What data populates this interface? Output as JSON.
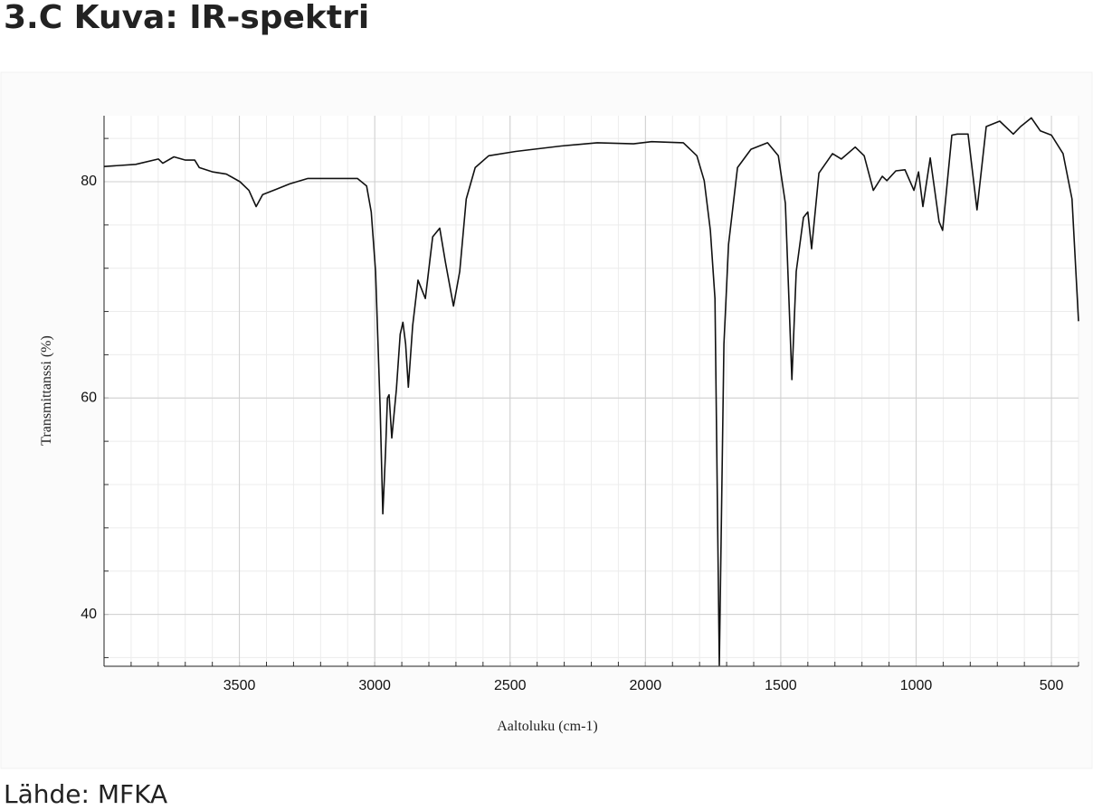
{
  "heading": "3.C Kuva: IR-spektri",
  "source": "Lähde: MFKA",
  "chart_data": {
    "type": "line",
    "xlabel": "Aaltoluku (cm-1)",
    "ylabel": "Transmittanssi (%)",
    "xlim": [
      4000,
      400
    ],
    "ylim": [
      35.2,
      86.1
    ],
    "xticks": [
      3500,
      3000,
      2500,
      2000,
      1500,
      1000,
      500
    ],
    "yticks": [
      40,
      60,
      80
    ],
    "grid": true,
    "minor_grid": true,
    "color": "#111111",
    "x": [
      4000,
      3883,
      3799,
      3783,
      3742,
      3699,
      3665,
      3648,
      3598,
      3548,
      3498,
      3465,
      3438,
      3414,
      3364,
      3314,
      3247,
      3180,
      3114,
      3064,
      3030,
      3013,
      2997,
      2980,
      2970,
      2960,
      2953,
      2947,
      2937,
      2920,
      2906,
      2896,
      2886,
      2876,
      2860,
      2840,
      2813,
      2786,
      2760,
      2739,
      2709,
      2686,
      2662,
      2629,
      2579,
      2479,
      2311,
      2178,
      2044,
      1977,
      1860,
      1810,
      1783,
      1760,
      1743,
      1727,
      1710,
      1693,
      1660,
      1610,
      1549,
      1509,
      1483,
      1470,
      1459,
      1443,
      1416,
      1400,
      1386,
      1359,
      1309,
      1276,
      1225,
      1192,
      1158,
      1125,
      1108,
      1075,
      1041,
      1008,
      991,
      975,
      948,
      915,
      902,
      868,
      848,
      808,
      775,
      741,
      691,
      641,
      614,
      574,
      541,
      500,
      457,
      424,
      400
    ],
    "values": [
      81.4,
      81.6,
      82.1,
      81.7,
      82.3,
      82.0,
      82.0,
      81.3,
      80.9,
      80.7,
      80.0,
      79.2,
      77.7,
      78.8,
      79.3,
      79.8,
      80.3,
      80.3,
      80.3,
      80.3,
      79.6,
      77.2,
      71.7,
      59.2,
      49.3,
      55.0,
      60.0,
      60.3,
      56.3,
      60.8,
      65.9,
      67.0,
      65.0,
      61.0,
      66.7,
      70.9,
      69.2,
      74.9,
      75.7,
      72.6,
      68.5,
      71.7,
      78.4,
      81.3,
      82.4,
      82.8,
      83.3,
      83.6,
      83.5,
      83.7,
      83.6,
      82.4,
      80.1,
      75.5,
      69.2,
      35.3,
      65.0,
      74.2,
      81.3,
      83.0,
      83.6,
      82.4,
      78.0,
      69.2,
      61.7,
      71.7,
      76.7,
      77.2,
      73.8,
      80.8,
      82.6,
      82.1,
      83.2,
      82.4,
      79.2,
      80.5,
      80.1,
      81.0,
      81.1,
      79.2,
      80.9,
      77.7,
      82.2,
      76.3,
      75.5,
      84.3,
      84.4,
      84.4,
      77.4,
      85.1,
      85.6,
      84.4,
      85.1,
      85.9,
      84.7,
      84.3,
      82.6,
      78.4,
      67.1
    ]
  }
}
